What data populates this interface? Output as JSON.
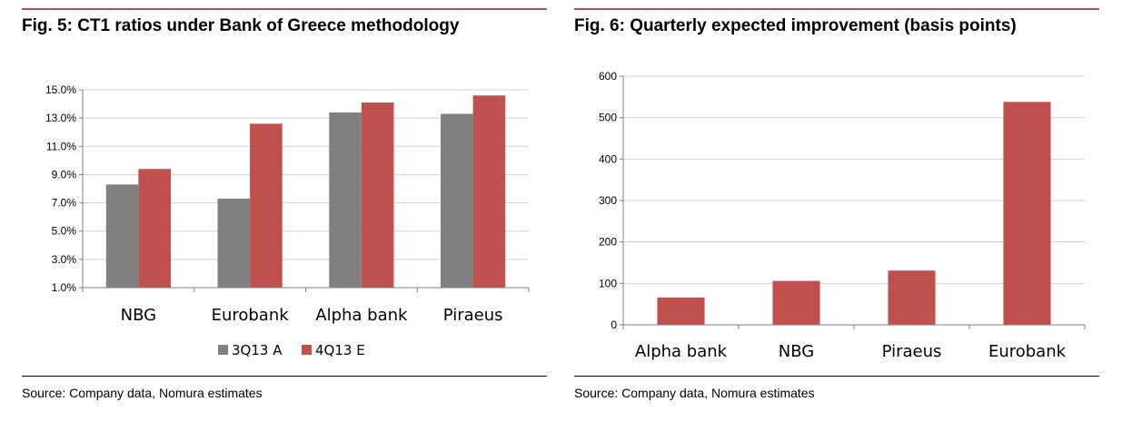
{
  "chart_data": [
    {
      "type": "bar",
      "title": "Fig. 5: CT1 ratios under Bank of Greece methodology",
      "categories": [
        "NBG",
        "Eurobank",
        "Alpha bank",
        "Piraeus"
      ],
      "series": [
        {
          "name": "3Q13 A",
          "color": "#808080",
          "values": [
            8.3,
            7.3,
            13.4,
            13.3
          ]
        },
        {
          "name": "4Q13 E",
          "color": "#c0504d",
          "values": [
            9.4,
            12.6,
            14.1,
            14.6
          ]
        }
      ],
      "ylim": [
        1.0,
        15.0
      ],
      "yticks": [
        1.0,
        3.0,
        5.0,
        7.0,
        9.0,
        11.0,
        13.0,
        15.0
      ],
      "ytick_labels": [
        "1.0%",
        "3.0%",
        "5.0%",
        "7.0%",
        "9.0%",
        "11.0%",
        "13.0%",
        "15.0%"
      ],
      "grid": true,
      "legend": "bottom",
      "source": "Source: Company data, Nomura estimates"
    },
    {
      "type": "bar",
      "title": "Fig. 6: Quarterly expected improvement (basis points)",
      "categories": [
        "Alpha bank",
        "NBG",
        "Piraeus",
        "Eurobank"
      ],
      "series": [
        {
          "name": "Quarterly expected improvement",
          "color": "#c0504d",
          "values": [
            66,
            106,
            131,
            538
          ]
        }
      ],
      "ylim": [
        0,
        600
      ],
      "yticks": [
        0,
        100,
        200,
        300,
        400,
        500,
        600
      ],
      "ytick_labels": [
        "0",
        "100",
        "200",
        "300",
        "400",
        "500",
        "600"
      ],
      "grid": true,
      "legend": "none",
      "source": "Source: Company data, Nomura estimates"
    }
  ]
}
